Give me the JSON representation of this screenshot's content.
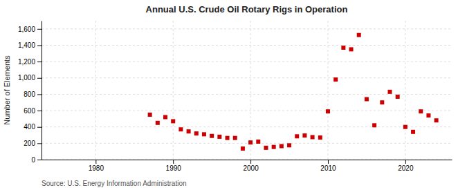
{
  "chart_data": {
    "type": "scatter",
    "title": "Annual U.S. Crude Oil Rotary Rigs in Operation",
    "ylabel": "Number of Elements",
    "annotations": [
      "Source: U.S. Energy Information Administration"
    ],
    "color": "#cc0000",
    "marker": "square",
    "grid": true,
    "xlim": [
      1973,
      2026
    ],
    "ylim": [
      0,
      1700
    ],
    "xticks": [
      1980,
      1990,
      2000,
      2010,
      2020
    ],
    "yticks": [
      0,
      200,
      400,
      600,
      800,
      {
        "value": 1000,
        "label": "1,000"
      },
      {
        "value": 1200,
        "label": "1,200"
      },
      {
        "value": 1400,
        "label": "1,400"
      },
      {
        "value": 1600,
        "label": "1,600"
      }
    ],
    "x": [
      1987,
      1988,
      1989,
      1990,
      1991,
      1992,
      1993,
      1994,
      1995,
      1996,
      1997,
      1998,
      1999,
      2000,
      2001,
      2002,
      2003,
      2004,
      2005,
      2006,
      2007,
      2008,
      2009,
      2010,
      2011,
      2012,
      2013,
      2014,
      2015,
      2016,
      2017,
      2018,
      2019,
      2020,
      2021,
      2022,
      2023,
      2024
    ],
    "values": [
      550,
      450,
      520,
      470,
      370,
      345,
      320,
      310,
      290,
      280,
      265,
      265,
      135,
      210,
      220,
      145,
      155,
      165,
      175,
      285,
      295,
      275,
      270,
      590,
      980,
      1370,
      1350,
      1525,
      740,
      420,
      700,
      830,
      770,
      400,
      340,
      590,
      540,
      480
    ]
  }
}
